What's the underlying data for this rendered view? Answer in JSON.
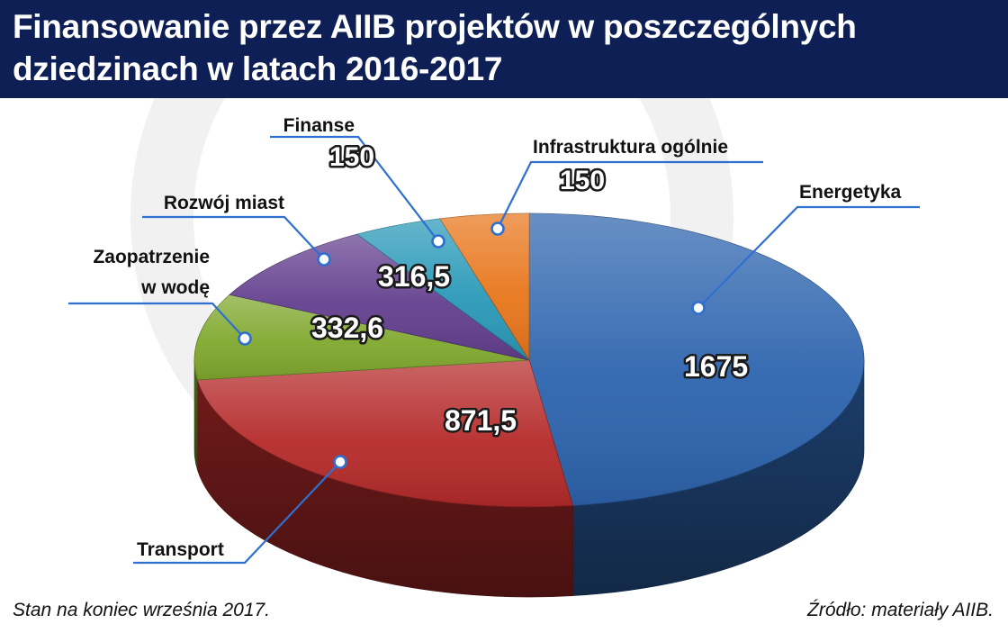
{
  "header": {
    "title": "Finansowanie przez AIIB projektów w poszczególnych dziedzinach w latach 2016-2017"
  },
  "footer": {
    "note": "Stan na koniec września 2017.",
    "source": "Źródło: materiały AIIB."
  },
  "colors": {
    "header_bg": "#0e1f56",
    "leader_line": "#2f6fd0"
  },
  "chart_data": {
    "type": "pie",
    "title": "Finansowanie przez AIIB projektów w poszczególnych dziedzinach w latach 2016-2017",
    "style": "3d",
    "slices": [
      {
        "name": "Energetyka",
        "value": 1675,
        "value_label": "1675",
        "color": "#2d64ae"
      },
      {
        "name": "Transport",
        "value": 871.5,
        "value_label": "871,5",
        "color": "#b52a2a"
      },
      {
        "name": "Zaopatrzenie w wodę",
        "value": 332.6,
        "value_label": "332,6",
        "color": "#80a82e"
      },
      {
        "name": "Rozwój miast",
        "value": 316.5,
        "value_label": "316,5",
        "color": "#633f8e"
      },
      {
        "name": "Finanse",
        "value": 150,
        "value_label": "150",
        "color": "#2a99b8"
      },
      {
        "name": "Infrastruktura ogólnie",
        "value": 150,
        "value_label": "150",
        "color": "#e8761c"
      }
    ]
  }
}
